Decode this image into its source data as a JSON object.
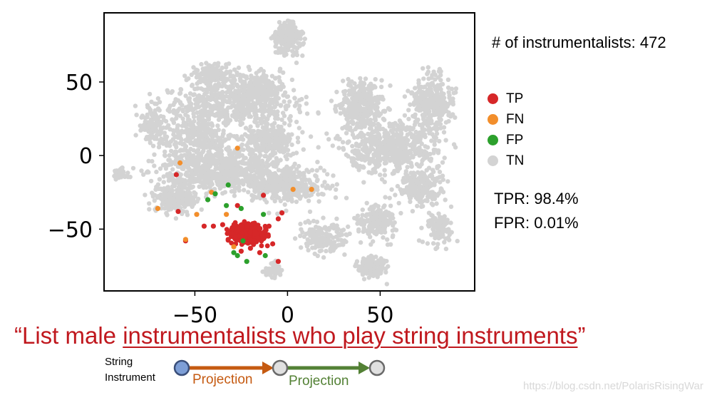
{
  "chart_data": {
    "type": "scatter",
    "title": "",
    "xlabel": "",
    "ylabel": "",
    "xlim": [
      -99,
      101
    ],
    "ylim": [
      -92,
      97
    ],
    "xticks": [
      -50,
      0,
      50
    ],
    "yticks": [
      50,
      0,
      -50
    ],
    "xtick_labels": [
      "−50",
      "0",
      "50"
    ],
    "ytick_labels": [
      "50",
      "0",
      "−50"
    ],
    "grid": false,
    "legend_position": "right",
    "series": [
      {
        "name": "TP",
        "color": "#d62728",
        "points": [
          [
            -20,
            -52
          ],
          [
            -25,
            -55
          ],
          [
            -15,
            -50
          ],
          [
            -30,
            -53
          ],
          [
            -18,
            -58
          ],
          [
            -22,
            -48
          ],
          [
            -28,
            -60
          ],
          [
            -12,
            -55
          ],
          [
            -32,
            -57
          ],
          [
            -10,
            -48
          ],
          [
            -5,
            -43
          ],
          [
            -3,
            -39
          ],
          [
            -35,
            -47
          ],
          [
            -40,
            -48
          ],
          [
            -45,
            -48
          ],
          [
            -55,
            -58
          ],
          [
            -59,
            -38
          ],
          [
            -60,
            -13
          ],
          [
            -25,
            -65
          ],
          [
            -15,
            -66
          ],
          [
            -5,
            -72
          ],
          [
            -13,
            -27
          ],
          [
            -27,
            -34
          ],
          [
            -20,
            -63
          ],
          [
            -8,
            -60
          ]
        ]
      },
      {
        "name": "FN",
        "color": "#f28e2b",
        "points": [
          [
            -70,
            -36
          ],
          [
            -58,
            -5
          ],
          [
            -49,
            -40
          ],
          [
            -41,
            -25
          ],
          [
            -33,
            -40
          ],
          [
            -27,
            5
          ],
          [
            3,
            -23
          ],
          [
            13,
            -23
          ],
          [
            -29,
            -62
          ],
          [
            -55,
            -57
          ]
        ]
      },
      {
        "name": "FP",
        "color": "#2ca02c",
        "points": [
          [
            -39,
            -26
          ],
          [
            -32,
            -20
          ],
          [
            -33,
            -34
          ],
          [
            -43,
            -30
          ],
          [
            -24,
            -58
          ],
          [
            -27,
            -68
          ],
          [
            -22,
            -72
          ],
          [
            -12,
            -68
          ],
          [
            -25,
            -36
          ],
          [
            -13,
            -40
          ],
          [
            -29,
            -66
          ]
        ]
      },
      {
        "name": "TN",
        "color": "#d3d3d3",
        "points": []
      }
    ]
  },
  "info": {
    "instrumentalists_count": "# of instrumentalists: 472",
    "tpr": "TPR: 98.4%",
    "fpr": "FPR: 0.01%"
  },
  "legend": [
    {
      "label": "TP",
      "color": "#d62728"
    },
    {
      "label": "FN",
      "color": "#f28e2b"
    },
    {
      "label": "FP",
      "color": "#2ca02c"
    },
    {
      "label": "TN",
      "color": "#d3d3d3"
    }
  ],
  "caption": {
    "open_quote": "“List male ",
    "underlined": "instrumentalists who play string instruments",
    "close_quote": "”"
  },
  "path": {
    "label_line1": "String",
    "label_line2": "Instrument",
    "projection1": "Projection",
    "projection2": "Projection",
    "color1": "#c55a11",
    "color2": "#538135",
    "start_node_color": "#7d9ed6"
  },
  "watermark": "https://blog.csdn.net/PolarisRisingWar"
}
